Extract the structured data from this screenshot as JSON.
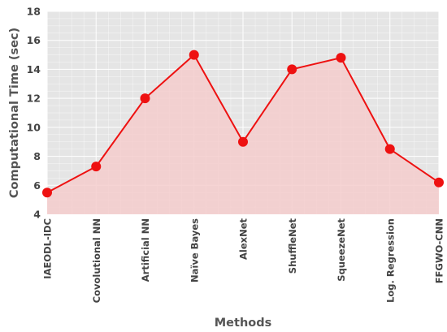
{
  "chart_data": {
    "type": "area",
    "title": "",
    "xlabel": "Methods",
    "ylabel": "Computational Time (sec)",
    "ylim": [
      4,
      18
    ],
    "yticks": [
      4,
      6,
      8,
      10,
      12,
      14,
      16,
      18
    ],
    "grid": true,
    "categories": [
      "IAEODL-IDC",
      "Covolutional NN",
      "Artificial NN",
      "Naïve Bayes",
      "AlexNet",
      "ShuffleNet",
      "SqueezeNet",
      "Log. Regression",
      "FFGWO-CNN"
    ],
    "values": [
      5.5,
      7.3,
      12.0,
      15.0,
      9.0,
      14.0,
      14.8,
      8.5,
      6.2
    ],
    "colors": {
      "line": "#ee1111",
      "marker": "#ee1111",
      "fill": "#f5cccc",
      "plot_bg": "#e5e5e5",
      "grid": "#ffffff"
    }
  }
}
